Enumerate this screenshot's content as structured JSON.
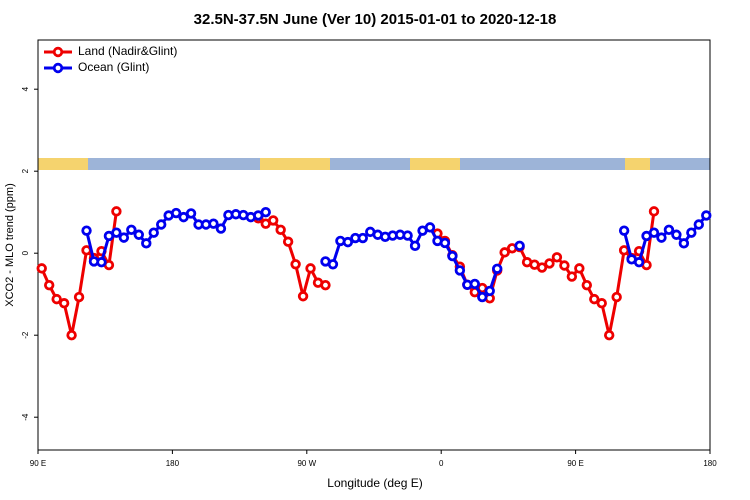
{
  "chart_data": {
    "type": "line",
    "title": "32.5N-37.5N June (Ver 10)   2015-01-01 to 2020-12-18",
    "x_label": "Longitude (deg E)",
    "y_label": "XCO2 - MLO trend (ppm)",
    "x": [
      92.5,
      97.5,
      102.5,
      107.5,
      112.5,
      117.5,
      122.5,
      127.5,
      132.5,
      137.5,
      142.5,
      147.5,
      152.5,
      157.5,
      162.5,
      167.5,
      172.5,
      177.5,
      182.5,
      187.5,
      192.5,
      197.5,
      202.5,
      207.5,
      212.5,
      217.5,
      222.5,
      227.5,
      232.5,
      237.5,
      242.5,
      247.5,
      252.5,
      257.5,
      262.5,
      267.5,
      272.5,
      277.5,
      282.5,
      287.5,
      292.5,
      297.5,
      302.5,
      307.5,
      312.5,
      317.5,
      322.5,
      327.5,
      332.5,
      337.5,
      342.5,
      347.5,
      352.5,
      357.5,
      362.5,
      367.5,
      372.5,
      377.5,
      382.5,
      387.5,
      392.5,
      397.5,
      402.5,
      407.5,
      412.5,
      417.5,
      422.5,
      427.5,
      432.5,
      437.5,
      442.5,
      447.5,
      452.5,
      457.5,
      462.5,
      467.5,
      472.5,
      477.5,
      482.5,
      487.5,
      492.5,
      497.5,
      502.5,
      507.5,
      512.5,
      517.5,
      522.5,
      527.5,
      532.5,
      537.5
    ],
    "series": [
      {
        "name": "Land (Nadir&Glint)",
        "color": "#ee0000",
        "values": [
          -0.37,
          -0.78,
          -1.12,
          -1.22,
          -2.0,
          -1.07,
          0.07,
          -0.12,
          0.05,
          -0.29,
          1.02,
          null,
          null,
          null,
          null,
          null,
          null,
          null,
          null,
          null,
          null,
          null,
          null,
          null,
          null,
          null,
          null,
          null,
          null,
          0.85,
          0.72,
          0.8,
          0.57,
          0.28,
          -0.27,
          -1.05,
          -0.37,
          -0.72,
          -0.78,
          null,
          null,
          null,
          null,
          null,
          null,
          null,
          null,
          null,
          null,
          null,
          null,
          null,
          null,
          0.48,
          0.3,
          -0.05,
          -0.33,
          -0.77,
          -0.95,
          -0.85,
          -1.1,
          -0.42,
          0.02,
          0.12,
          0.15,
          -0.22,
          -0.28,
          -0.35,
          -0.25,
          -0.1,
          -0.3,
          -0.57,
          -0.37,
          -0.78,
          -1.12,
          -1.22,
          -2.0,
          -1.07,
          0.07,
          -0.12,
          0.05,
          -0.29,
          1.02,
          null,
          null,
          null,
          null,
          null,
          null,
          null
        ]
      },
      {
        "name": "Ocean (Glint)",
        "color": "#0000ee",
        "values": [
          null,
          null,
          null,
          null,
          null,
          null,
          0.55,
          -0.2,
          -0.22,
          0.42,
          0.5,
          0.38,
          0.57,
          0.45,
          0.24,
          0.5,
          0.7,
          0.92,
          0.98,
          0.88,
          0.97,
          0.7,
          0.7,
          0.72,
          0.6,
          0.93,
          0.95,
          0.93,
          0.88,
          0.92,
          1.0,
          null,
          null,
          null,
          null,
          null,
          null,
          null,
          -0.2,
          -0.27,
          0.3,
          0.27,
          0.37,
          0.37,
          0.52,
          0.45,
          0.4,
          0.43,
          0.45,
          0.43,
          0.18,
          0.55,
          0.63,
          0.3,
          0.25,
          -0.07,
          -0.42,
          -0.77,
          -0.75,
          -1.07,
          -0.92,
          -0.38,
          null,
          null,
          0.18,
          null,
          null,
          null,
          null,
          null,
          null,
          null,
          null,
          null,
          null,
          null,
          null,
          null,
          0.55,
          -0.15,
          -0.22,
          0.42,
          0.5,
          0.38,
          0.57,
          0.45,
          0.24,
          0.5,
          0.7,
          0.92
        ]
      }
    ],
    "xlim": [
      90,
      540
    ],
    "xticks": [
      {
        "value": 90,
        "label": "90 E"
      },
      {
        "value": 180,
        "label": "180"
      },
      {
        "value": 270,
        "label": "90 W"
      },
      {
        "value": 360,
        "label": "0"
      },
      {
        "value": 450,
        "label": "90 E"
      },
      {
        "value": 540,
        "label": "180"
      }
    ],
    "ylim": [
      -4.8,
      5.2
    ],
    "yticks": [
      -4,
      -2,
      0,
      2,
      4
    ],
    "legend": "top-left"
  }
}
